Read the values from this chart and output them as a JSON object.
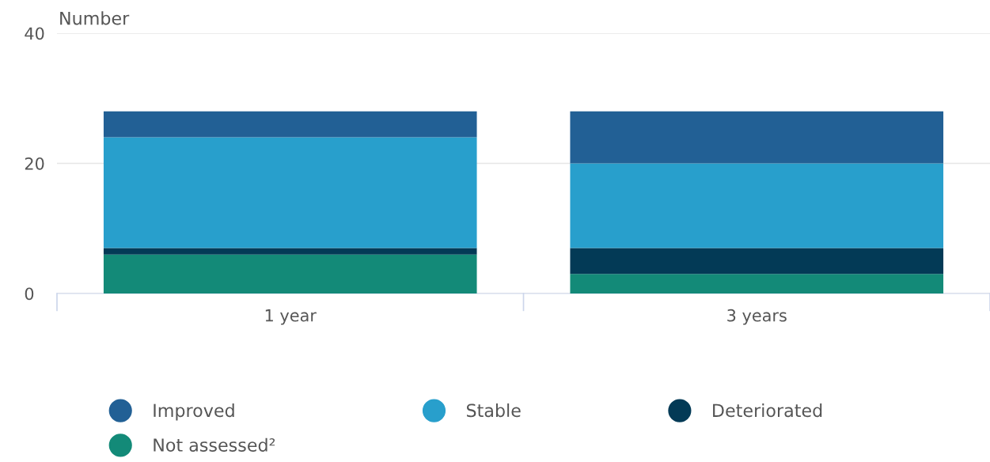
{
  "chart_data": {
    "type": "bar",
    "ylabel": "Number",
    "categories": [
      "1 year",
      "3 years"
    ],
    "stacked": true,
    "series": [
      {
        "name": "Not assessed²",
        "color": "#138a78",
        "values": [
          6,
          3
        ]
      },
      {
        "name": "Deteriorated",
        "color": "#033a56",
        "values": [
          1,
          4
        ]
      },
      {
        "name": "Stable",
        "color": "#289fcc",
        "values": [
          17,
          13
        ]
      },
      {
        "name": "Improved",
        "color": "#226095",
        "values": [
          4,
          8
        ]
      }
    ],
    "ylim": [
      0,
      40
    ],
    "yticks": [
      0,
      20,
      40
    ],
    "grid": "y",
    "legend": "bottom"
  }
}
